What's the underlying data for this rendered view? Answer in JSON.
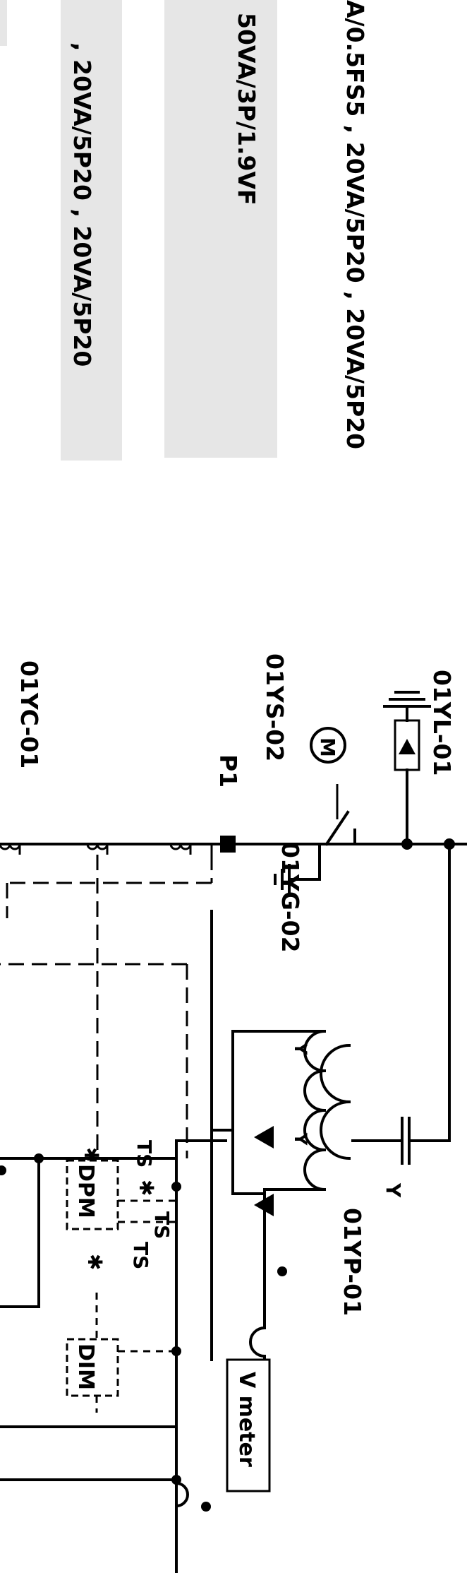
{
  "ratings": {
    "line1": "A/0.5FS5 , 20VA/5P20 , 20VA/5P20",
    "line2": "50VA/3P/1.9VF",
    "line3": ", 20VA/5P20 , 20VA/5P20"
  },
  "labels": {
    "lightning_arrester": "01YL-01",
    "earthing_switch": "01YS-02",
    "ground_switch": "01YG-02",
    "current_transformer": "01YC-01",
    "voltage_transformer": "01YP-01",
    "polarity_mark": "P1",
    "motor_symbol": "M",
    "test_switch_1": "TS",
    "test_switch_2": "TS",
    "test_switch_3": "TS",
    "dpm": "DPM",
    "dim": "DIM",
    "voltmeter": "V meter"
  }
}
